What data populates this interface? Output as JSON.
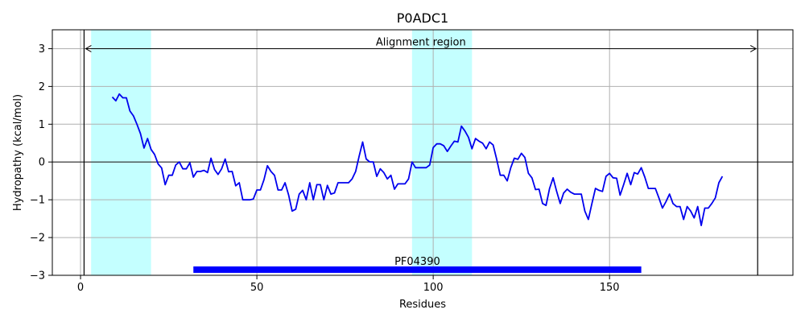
{
  "chart_data": {
    "type": "line",
    "title": "P0ADC1",
    "xlabel": "Residues",
    "ylabel": "Hydropathy (kcal/mol)",
    "xlim": [
      -8,
      202
    ],
    "ylim": [
      -3,
      3.5
    ],
    "xticks": [
      0,
      50,
      100,
      150
    ],
    "yticks": [
      -3,
      -2,
      -1,
      0,
      1,
      2,
      3
    ],
    "ytick_labels": [
      "−3",
      "−2",
      "−1",
      "0",
      "1",
      "2",
      "3"
    ],
    "grid": true,
    "colors": {
      "line": "#0000ee",
      "highlight": "#c4ffff",
      "domain_bar": "#0000ff",
      "grid": "#b0b0b0",
      "axis": "#000000"
    },
    "series": [
      {
        "x": [
          9,
          10,
          11,
          12,
          13,
          14,
          15,
          16,
          17,
          18,
          19,
          20,
          21,
          22,
          23,
          24,
          25,
          26,
          27,
          28,
          29,
          30,
          31,
          32,
          33,
          34,
          35,
          36,
          37,
          38,
          39,
          40,
          41,
          42,
          43,
          44,
          45,
          46,
          47,
          48,
          49,
          50,
          51,
          52,
          53,
          54,
          55,
          56,
          57,
          58,
          59,
          60,
          61,
          62,
          63,
          64,
          65,
          66,
          67,
          68,
          69,
          70,
          71,
          72,
          73,
          74,
          75,
          76,
          77,
          78,
          79,
          80,
          81,
          82,
          83,
          84,
          85,
          86,
          87,
          88,
          89,
          90,
          91,
          92,
          93,
          94,
          95,
          96,
          97,
          98,
          99,
          100,
          101,
          102,
          103,
          104,
          105,
          106,
          107,
          108,
          109,
          110,
          111,
          112,
          113,
          114,
          115,
          116,
          117,
          118,
          119,
          120,
          121,
          122,
          123,
          124,
          125,
          126,
          127,
          128,
          129,
          130,
          131,
          132,
          133,
          134,
          135,
          136,
          137,
          138,
          139,
          140,
          141,
          142,
          143,
          144,
          145,
          146,
          147,
          148,
          149,
          150,
          151,
          152,
          153,
          154,
          155,
          156,
          157,
          158,
          159,
          160,
          161,
          162,
          163,
          164,
          165,
          166,
          167,
          168,
          169,
          170,
          171,
          172,
          173,
          174,
          175,
          176,
          177,
          178,
          179,
          180,
          181,
          182
        ],
        "y": [
          1.72,
          1.62,
          1.8,
          1.7,
          1.7,
          1.35,
          1.22,
          1.0,
          0.75,
          0.37,
          0.62,
          0.33,
          0.2,
          -0.05,
          -0.16,
          -0.6,
          -0.35,
          -0.35,
          -0.08,
          0,
          -0.18,
          -0.18,
          -0.02,
          -0.4,
          -0.25,
          -0.25,
          -0.22,
          -0.28,
          0.1,
          -0.2,
          -0.33,
          -0.18,
          0.08,
          -0.26,
          -0.25,
          -0.63,
          -0.55,
          -1.0,
          -1.0,
          -1.0,
          -0.98,
          -0.74,
          -0.74,
          -0.47,
          -0.1,
          -0.25,
          -0.35,
          -0.74,
          -0.74,
          -0.55,
          -0.87,
          -1.3,
          -1.25,
          -0.85,
          -0.75,
          -1.0,
          -0.55,
          -1.0,
          -0.6,
          -0.6,
          -1.0,
          -0.62,
          -0.85,
          -0.82,
          -0.55,
          -0.55,
          -0.55,
          -0.55,
          -0.45,
          -0.25,
          0.15,
          0.53,
          0.08,
          0,
          0,
          -0.38,
          -0.18,
          -0.28,
          -0.45,
          -0.35,
          -0.72,
          -0.58,
          -0.58,
          -0.58,
          -0.45,
          0,
          -0.15,
          -0.15,
          -0.15,
          -0.15,
          -0.08,
          0.38,
          0.48,
          0.48,
          0.43,
          0.28,
          0.42,
          0.55,
          0.53,
          0.95,
          0.82,
          0.65,
          0.35,
          0.62,
          0.55,
          0.5,
          0.35,
          0.53,
          0.45,
          0.07,
          -0.35,
          -0.35,
          -0.5,
          -0.15,
          0.1,
          0.07,
          0.23,
          0.12,
          -0.3,
          -0.42,
          -0.73,
          -0.72,
          -1.1,
          -1.15,
          -0.7,
          -0.42,
          -0.78,
          -1.1,
          -0.82,
          -0.72,
          -0.8,
          -0.85,
          -0.85,
          -0.85,
          -1.3,
          -1.52,
          -1.1,
          -0.7,
          -0.75,
          -0.78,
          -0.38,
          -0.3,
          -0.42,
          -0.43,
          -0.88,
          -0.6,
          -0.3,
          -0.6,
          -0.28,
          -0.32,
          -0.15,
          -0.4,
          -0.7,
          -0.7,
          -0.7,
          -0.95,
          -1.22,
          -1.05,
          -0.85,
          -1.1,
          -1.18,
          -1.18,
          -1.52,
          -1.18,
          -1.3,
          -1.48,
          -1.18,
          -1.68,
          -1.22,
          -1.22,
          -1.1,
          -0.95,
          -0.55,
          -0.38
        ]
      }
    ],
    "highlight_regions": [
      [
        3,
        20
      ],
      [
        94,
        111
      ]
    ],
    "vertical_lines": [
      1,
      192
    ],
    "alignment": {
      "label": "Alignment region",
      "start": 1,
      "end": 192,
      "y": 3.0
    },
    "domains": [
      {
        "label": "PF04390",
        "start": 32,
        "end": 159,
        "y": -2.85
      }
    ]
  }
}
